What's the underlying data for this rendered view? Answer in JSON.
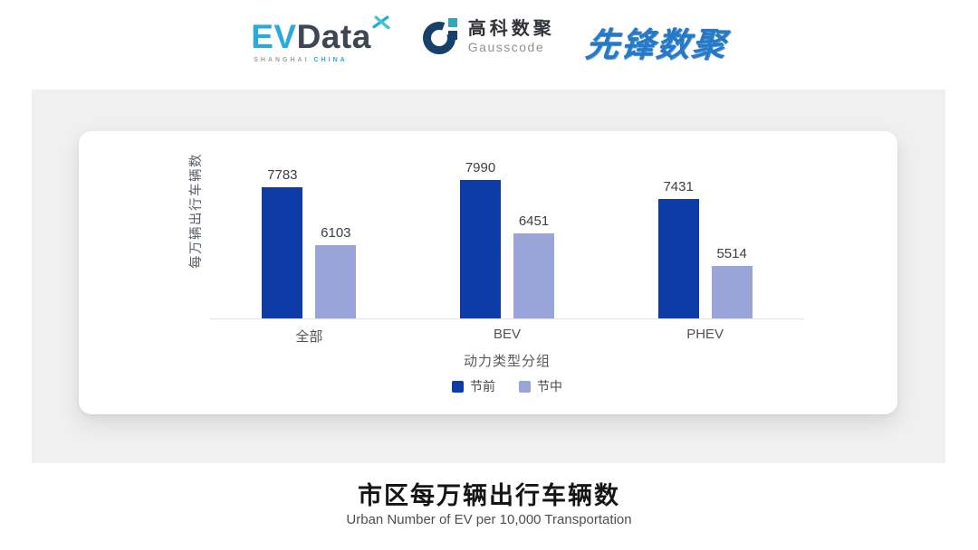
{
  "header": {
    "evdata": {
      "ev": "EV",
      "data": "Data",
      "sub_city": "SHANGHAI",
      "sub_country": "CHINA"
    },
    "gausscode": {
      "cn": "高科数聚",
      "en": "Gausscode"
    },
    "xianfeng": {
      "text": "先锋数聚"
    }
  },
  "colors": {
    "series_dark_blue": "#0d3ca6",
    "series_light_blue": "#99a5d8",
    "panel_gray": "#f0f0f1",
    "evdata_cyan": "#29aadf",
    "evdata_dark": "#3d4754",
    "gausscode_navy": "#16406a",
    "gausscode_teal": "#2fa9b5",
    "xianfeng_blue": "#2878c8"
  },
  "chart_data": {
    "type": "bar",
    "title": "市区每万辆出行车辆数",
    "subtitle": "Urban Number of EV per 10,000 Transportation",
    "categories": [
      "全部",
      "BEV",
      "PHEV"
    ],
    "series": [
      {
        "name": "节前",
        "color": "#0d3ca6",
        "values": [
          7783,
          7990,
          7431
        ]
      },
      {
        "name": "节中",
        "color": "#99a5d8",
        "values": [
          6103,
          6451,
          5514
        ]
      }
    ],
    "xlabel": "动力类型分组",
    "ylabel": "每万辆出行车辆数",
    "ylim": [
      4000,
      9000
    ],
    "grid": false,
    "legend_position": "bottom",
    "value_labels": true
  }
}
